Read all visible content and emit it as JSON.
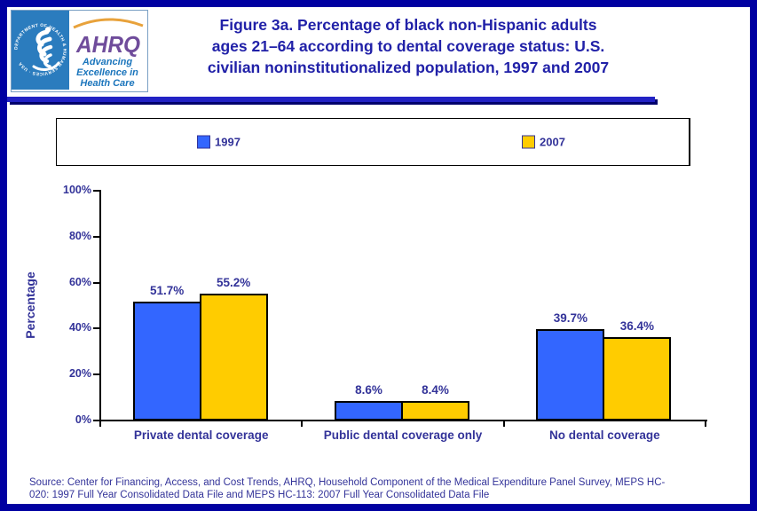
{
  "header": {
    "title_lines": [
      "Figure 3a. Percentage of black non-Hispanic adults",
      "ages 21–64 according to dental coverage status: U.S.",
      "civilian noninstitutionalized population, 1997 and 2007"
    ],
    "logo": {
      "ring_text": "DEPARTMENT OF HEALTH & HUMAN SERVICES · USA",
      "acronym": "AHRQ",
      "tagline_lines": [
        "Advancing",
        "Excellence in",
        "Health Care"
      ]
    }
  },
  "chart_data": {
    "type": "bar",
    "title": "Figure 3a. Percentage of black non-Hispanic adults ages 21–64 according to dental coverage status: U.S. civilian noninstitutionalized population, 1997 and 2007",
    "categories": [
      "Private dental coverage",
      "Public dental coverage only",
      "No dental coverage"
    ],
    "series": [
      {
        "name": "1997",
        "color": "#3366FF",
        "values": [
          51.7,
          8.6,
          39.7
        ]
      },
      {
        "name": "2007",
        "color": "#FFCC00",
        "values": [
          55.2,
          8.4,
          36.4
        ]
      }
    ],
    "value_suffix": "%",
    "ylabel": "Percentage",
    "ylim": [
      0,
      100
    ],
    "ytick_step": 20,
    "ytick_labels": [
      "0%",
      "20%",
      "40%",
      "60%",
      "80%",
      "100%"
    ],
    "legend_position": "top",
    "grid": false
  },
  "source": {
    "lines": [
      "Source: Center for Financing, Access, and Cost Trends, AHRQ, Household Component of the Medical Expenditure Panel Survey, MEPS HC-",
      "020: 1997 Full Year Consolidated Data File and MEPS HC-113: 2007 Full Year Consolidated Data File"
    ]
  },
  "colors": {
    "frame_border": "#0000A1",
    "divider": "#2222C4",
    "title_text": "#2121A8",
    "label_text": "#333399",
    "bar_1997": "#3366FF",
    "bar_2007": "#FFCC00",
    "hhs_logo_blue": "#2B7CBE",
    "ahrq_purple": "#6F4C9B",
    "tagline_blue": "#1B75BC"
  }
}
